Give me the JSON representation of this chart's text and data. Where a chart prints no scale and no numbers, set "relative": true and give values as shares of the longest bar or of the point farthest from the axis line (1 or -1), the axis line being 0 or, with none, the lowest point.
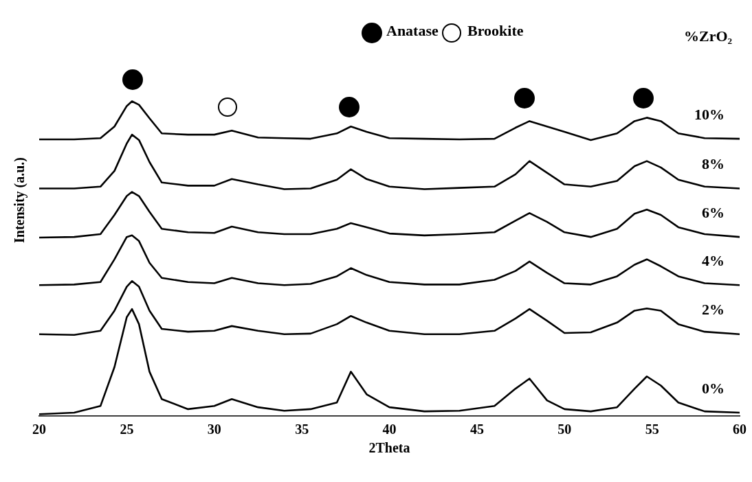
{
  "chart_data": {
    "type": "line",
    "xlabel": "2Theta",
    "ylabel": "Intensity (a.u.)",
    "relative": true,
    "legend": false,
    "grid": false,
    "marker": "none",
    "line_style": "solid",
    "annotations": [
      "Anatase",
      "Brookite",
      "%ZrO₂"
    ],
    "xlim": [
      20,
      60
    ],
    "xticks": [
      20,
      25,
      30,
      35,
      40,
      45,
      50,
      55,
      60
    ],
    "x": [
      20,
      22,
      23.5,
      24.3,
      25,
      25.3,
      25.7,
      26.3,
      27,
      28.5,
      30,
      31,
      32.5,
      34,
      35.5,
      37,
      37.8,
      38.7,
      40,
      42,
      44,
      46,
      47.2,
      48,
      49,
      50,
      51.5,
      53,
      54,
      54.7,
      55.5,
      56.5,
      58,
      60
    ],
    "series": [
      {
        "name": "10%",
        "color": "#000000",
        "values": [
          0.879,
          0.879,
          0.883,
          0.92,
          0.985,
          1,
          0.989,
          0.946,
          0.898,
          0.894,
          0.894,
          0.907,
          0.885,
          0.883,
          0.881,
          0.898,
          0.92,
          0.903,
          0.883,
          0.881,
          0.879,
          0.881,
          0.916,
          0.937,
          0.92,
          0.903,
          0.877,
          0.898,
          0.937,
          0.948,
          0.937,
          0.898,
          0.883,
          0.881
        ]
      },
      {
        "name": "8%",
        "color": "#000000",
        "values": [
          0.723,
          0.723,
          0.729,
          0.779,
          0.866,
          0.894,
          0.877,
          0.807,
          0.742,
          0.732,
          0.732,
          0.753,
          0.736,
          0.721,
          0.723,
          0.751,
          0.784,
          0.753,
          0.729,
          0.721,
          0.725,
          0.729,
          0.768,
          0.81,
          0.773,
          0.736,
          0.729,
          0.747,
          0.794,
          0.81,
          0.79,
          0.751,
          0.729,
          0.723
        ]
      },
      {
        "name": "6%",
        "color": "#000000",
        "values": [
          0.567,
          0.569,
          0.578,
          0.639,
          0.699,
          0.712,
          0.699,
          0.649,
          0.595,
          0.584,
          0.582,
          0.602,
          0.584,
          0.578,
          0.578,
          0.595,
          0.613,
          0.6,
          0.58,
          0.574,
          0.578,
          0.584,
          0.621,
          0.645,
          0.617,
          0.584,
          0.569,
          0.595,
          0.643,
          0.656,
          0.639,
          0.6,
          0.578,
          0.569
        ]
      },
      {
        "name": "4%",
        "color": "#000000",
        "values": [
          0.416,
          0.418,
          0.426,
          0.498,
          0.569,
          0.574,
          0.556,
          0.487,
          0.439,
          0.426,
          0.422,
          0.439,
          0.422,
          0.416,
          0.42,
          0.444,
          0.47,
          0.448,
          0.426,
          0.418,
          0.418,
          0.433,
          0.461,
          0.491,
          0.455,
          0.422,
          0.418,
          0.444,
          0.481,
          0.498,
          0.476,
          0.444,
          0.422,
          0.416
        ]
      },
      {
        "name": "2%",
        "color": "#000000",
        "values": [
          0.26,
          0.258,
          0.271,
          0.335,
          0.411,
          0.429,
          0.411,
          0.335,
          0.277,
          0.268,
          0.271,
          0.286,
          0.271,
          0.26,
          0.262,
          0.292,
          0.318,
          0.297,
          0.271,
          0.26,
          0.26,
          0.271,
          0.31,
          0.34,
          0.303,
          0.264,
          0.266,
          0.297,
          0.335,
          0.342,
          0.335,
          0.292,
          0.268,
          0.26
        ]
      },
      {
        "name": "0%",
        "color": "#000000",
        "values": [
          0.006,
          0.011,
          0.032,
          0.156,
          0.314,
          0.34,
          0.292,
          0.141,
          0.054,
          0.022,
          0.032,
          0.054,
          0.028,
          0.017,
          0.022,
          0.043,
          0.141,
          0.069,
          0.028,
          0.015,
          0.017,
          0.032,
          0.087,
          0.119,
          0.05,
          0.022,
          0.015,
          0.028,
          0.087,
          0.126,
          0.097,
          0.043,
          0.015,
          0.011
        ]
      }
    ]
  }
}
